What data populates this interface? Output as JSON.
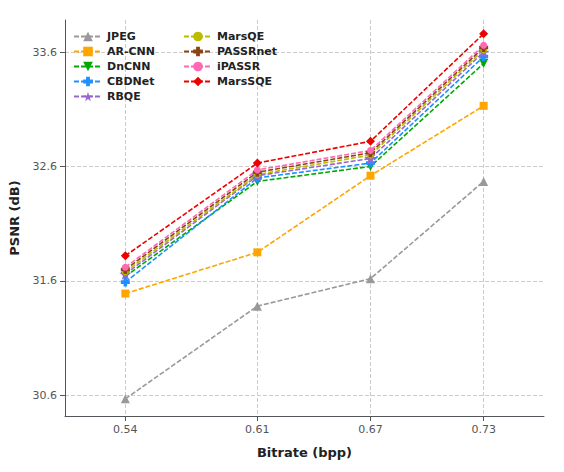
{
  "chart_data": {
    "type": "line",
    "x": [
      0.54,
      0.61,
      0.67,
      0.73
    ],
    "series": [
      {
        "name": "JPEG",
        "values": [
          30.57,
          31.38,
          31.62,
          32.47
        ],
        "color": "#999999",
        "marker": "triangle_up",
        "line_style": "dashed"
      },
      {
        "name": "AR-CNN",
        "values": [
          31.49,
          31.85,
          32.52,
          33.13
        ],
        "color": "#FFA500",
        "marker": "square",
        "line_style": "dashed"
      },
      {
        "name": "DnCNN",
        "values": [
          31.64,
          32.47,
          32.6,
          33.5
        ],
        "color": "#00AA00",
        "marker": "triangle_down",
        "line_style": "dashed"
      },
      {
        "name": "CBDNet",
        "values": [
          31.59,
          32.5,
          32.63,
          33.56
        ],
        "color": "#1E90FF",
        "marker": "plus_filled",
        "line_style": "dashed"
      },
      {
        "name": "RBQE",
        "values": [
          31.66,
          32.52,
          32.67,
          33.6
        ],
        "color": "#9966CC",
        "marker": "star",
        "line_style": "dashed"
      },
      {
        "name": "MarsQE",
        "values": [
          31.68,
          32.53,
          32.7,
          33.62
        ],
        "color": "#BBBB00",
        "marker": "circle",
        "line_style": "dashed"
      },
      {
        "name": "PASSRnet",
        "values": [
          31.7,
          32.55,
          32.72,
          33.64
        ],
        "color": "#8B4513",
        "marker": "plus_filled",
        "line_style": "dashed"
      },
      {
        "name": "iPASSR",
        "values": [
          31.72,
          32.57,
          32.74,
          33.66
        ],
        "color": "#FF69B4",
        "marker": "circle",
        "line_style": "dashed"
      },
      {
        "name": "MarsSQE",
        "values": [
          31.82,
          32.63,
          32.82,
          33.76
        ],
        "color": "#EE0000",
        "marker": "diamond",
        "line_style": "dashed"
      }
    ],
    "xlabel": "Bitrate (bpp)",
    "ylabel": "PSNR (dB)",
    "xlim": [
      0.508,
      0.762
    ],
    "ylim": [
      30.42,
      33.88
    ],
    "xticks": [
      0.54,
      0.61,
      0.67,
      0.73
    ],
    "yticks": [
      30.6,
      31.6,
      32.6,
      33.6
    ],
    "grid": true,
    "legend": "upper left"
  }
}
